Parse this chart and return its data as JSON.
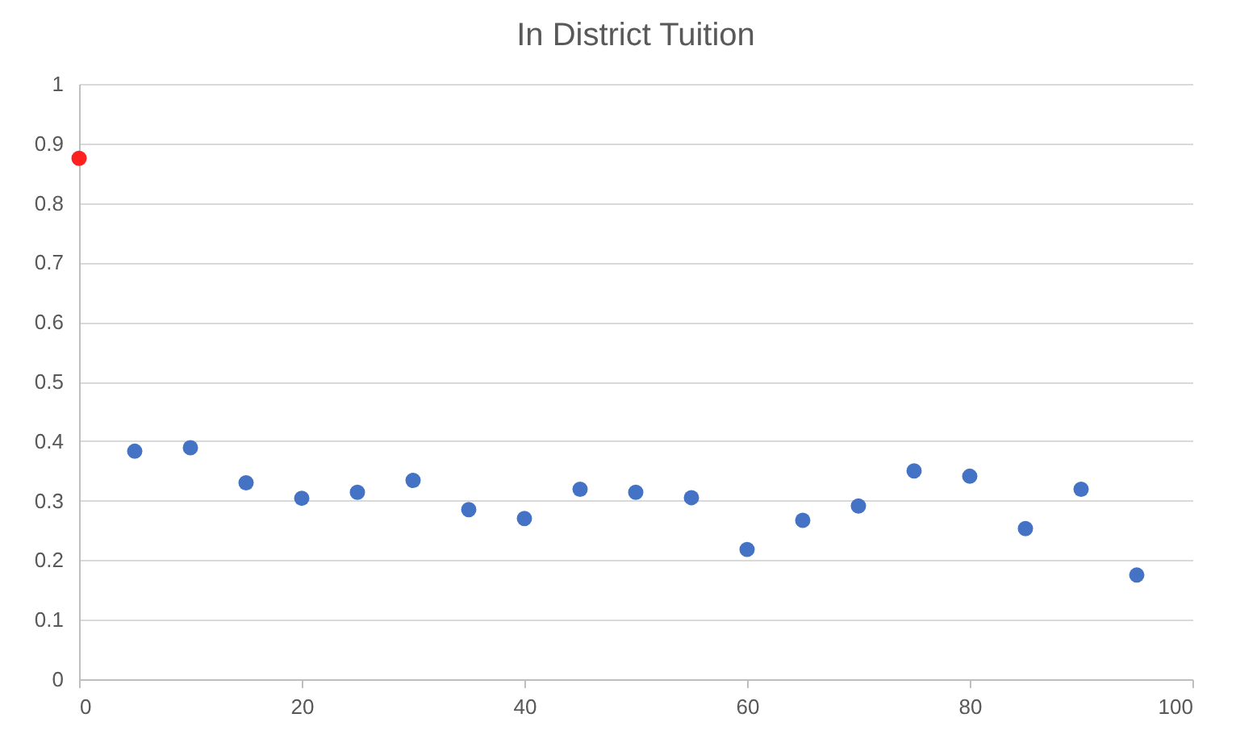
{
  "chart_data": {
    "type": "scatter",
    "title": "In District Tuition",
    "xlim": [
      0,
      100
    ],
    "xticks": [
      0,
      20,
      40,
      60,
      80,
      100
    ],
    "ylim": [
      0,
      1
    ],
    "yticks": [
      0,
      0.1,
      0.2,
      0.3,
      0.4,
      0.5,
      0.6,
      0.7,
      0.8,
      0.9,
      1
    ],
    "grid": "y",
    "legend": false,
    "marker": "circle",
    "series": [
      {
        "color": "#ff2020",
        "x": [
          0
        ],
        "values": [
          0.875
        ]
      },
      {
        "color": "#4472c4",
        "x": [
          5,
          10,
          15,
          20,
          25,
          30,
          35,
          40,
          45,
          50,
          55,
          60,
          65,
          70,
          75,
          80,
          85,
          90,
          95
        ],
        "values": [
          0.383,
          0.389,
          0.33,
          0.304,
          0.314,
          0.334,
          0.285,
          0.27,
          0.319,
          0.314,
          0.305,
          0.218,
          0.267,
          0.291,
          0.35,
          0.341,
          0.253,
          0.319,
          0.175
        ]
      }
    ]
  }
}
